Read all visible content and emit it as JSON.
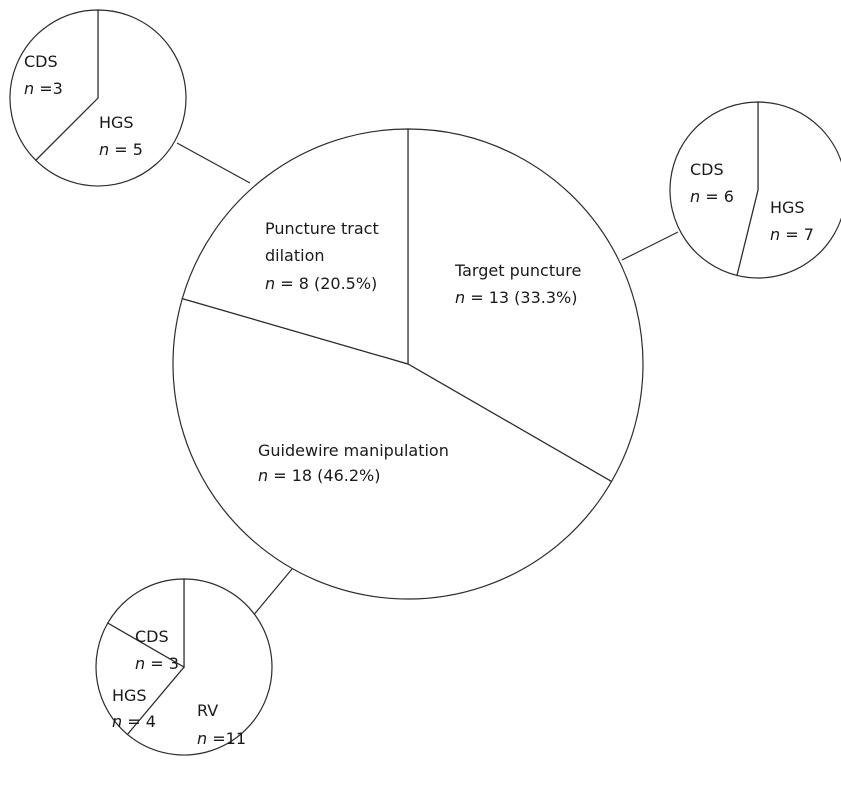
{
  "chart_data": [
    {
      "type": "pie",
      "id": "main",
      "title": "",
      "slices": [
        {
          "label": "Target puncture",
          "n": 13,
          "percent": 33.3,
          "value_text": "= 13 (33.3%)"
        },
        {
          "label": "Guidewire manipulation",
          "n": 18,
          "percent": 46.2,
          "value_text": "= 18 (46.2%)"
        },
        {
          "label": "Puncture tract dilation",
          "label_lines": [
            "Puncture tract",
            "dilation"
          ],
          "n": 8,
          "percent": 20.5,
          "value_text": "= 8 (20.5%)"
        }
      ]
    },
    {
      "type": "pie",
      "id": "puncture-tract-dilation-breakdown",
      "title": "",
      "parent": "Puncture tract dilation",
      "slices": [
        {
          "label": "HGS",
          "n": 5,
          "value_text": "= 5"
        },
        {
          "label": "CDS",
          "n": 3,
          "value_text": "=3"
        }
      ]
    },
    {
      "type": "pie",
      "id": "target-puncture-breakdown",
      "title": "",
      "parent": "Target puncture",
      "slices": [
        {
          "label": "HGS",
          "n": 7,
          "value_text": "= 7"
        },
        {
          "label": "CDS",
          "n": 6,
          "value_text": "= 6"
        }
      ]
    },
    {
      "type": "pie",
      "id": "guidewire-manipulation-breakdown",
      "title": "",
      "parent": "Guidewire manipulation",
      "slices": [
        {
          "label": "RV",
          "n": 11,
          "value_text": "=11"
        },
        {
          "label": "HGS",
          "n": 4,
          "value_text": "= 4"
        },
        {
          "label": "CDS",
          "n": 3,
          "value_text": "= 3"
        }
      ]
    }
  ],
  "n_symbol": "n",
  "colors": {
    "line": "#2b2b2b",
    "text": "#1a1a1a",
    "background": "#ffffff"
  }
}
